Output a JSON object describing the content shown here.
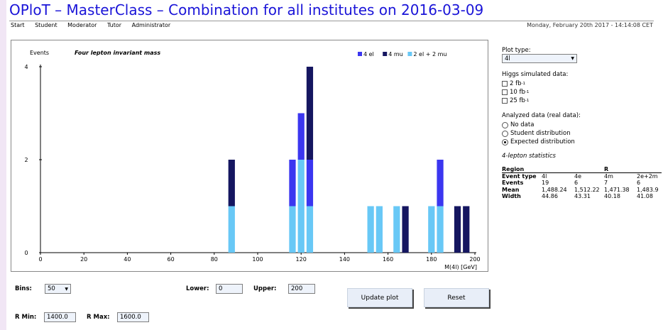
{
  "header": {
    "title": "OPloT – MasterClass – Combination for all institutes on 2016-03-09",
    "date": "Monday, February 20th 2017 - 14:14:08 CET",
    "nav": [
      "Start",
      "Student",
      "Moderator",
      "Tutor",
      "Administrator"
    ]
  },
  "colors": {
    "4el": "#3b36f0",
    "4mu": "#151660",
    "2el2mu": "#68c8f6",
    "title": "#1a14d8"
  },
  "chart_data": {
    "type": "bar",
    "stacked": true,
    "title": "Four lepton invariant mass",
    "ylabel": "Events",
    "xlabel": "M(4l) [GeV]",
    "xlim": [
      0,
      200
    ],
    "ylim": [
      0,
      4
    ],
    "xticks": [
      "0",
      "20",
      "40",
      "60",
      "80",
      "100",
      "120",
      "140",
      "160",
      "180",
      "200"
    ],
    "yticks": [
      "0",
      "2",
      "4"
    ],
    "grid": false,
    "legend_position": "top-right",
    "bin_width": 4,
    "bins": [
      86,
      114,
      118,
      122,
      150,
      154,
      162,
      166,
      178,
      182,
      190,
      194
    ],
    "series": [
      {
        "name": "2 el + 2 mu",
        "color": "#68c8f6",
        "values": [
          1,
          1,
          2,
          1,
          1,
          1,
          1,
          0,
          1,
          1,
          0,
          0
        ]
      },
      {
        "name": "4 el",
        "color": "#3b36f0",
        "values": [
          0,
          1,
          1,
          1,
          0,
          0,
          0,
          0,
          0,
          1,
          0,
          0
        ]
      },
      {
        "name": "4 mu",
        "color": "#151660",
        "values": [
          1,
          0,
          0,
          2,
          0,
          0,
          0,
          1,
          0,
          0,
          1,
          1
        ]
      }
    ],
    "legend": [
      {
        "label": "4 el",
        "color": "#3b36f0"
      },
      {
        "label": "4 mu",
        "color": "#151660"
      },
      {
        "label": "2 el + 2 mu",
        "color": "#68c8f6"
      }
    ]
  },
  "side": {
    "plot_type_label": "Plot type:",
    "plot_type_value": "4l",
    "higgs_label": "Higgs simulated data:",
    "higgs_options": [
      "2 fb",
      "10 fb",
      "25 fb"
    ],
    "higgs_sup": "-1",
    "analyzed_label": "Analyzed data (real data):",
    "analyzed_options": [
      "No data",
      "Student distribution",
      "Expected distribution"
    ],
    "analyzed_selected": 2,
    "stats_title": "4-lepton statistics",
    "stats": {
      "header": [
        "Region",
        "",
        "",
        "R",
        ""
      ],
      "rows": [
        [
          "Event type",
          "4l",
          "4e",
          "4m",
          "2e+2m"
        ],
        [
          "Events",
          "19",
          "6",
          "7",
          "6"
        ],
        [
          "Mean",
          "1,488.24",
          "1,512.22",
          "1,471.38",
          "1,483.9"
        ],
        [
          "Width",
          "44.86",
          "43.31",
          "40.18",
          "41.08"
        ]
      ]
    }
  },
  "controls": {
    "bins_label": "Bins:",
    "bins_value": "50",
    "lower_label": "Lower:",
    "lower_value": "0",
    "upper_label": "Upper:",
    "upper_value": "200",
    "rmin_label": "R Min:",
    "rmin_value": "1400.0",
    "rmax_label": "R Max:",
    "rmax_value": "1600.0",
    "update_label": "Update plot",
    "reset_label": "Reset"
  }
}
